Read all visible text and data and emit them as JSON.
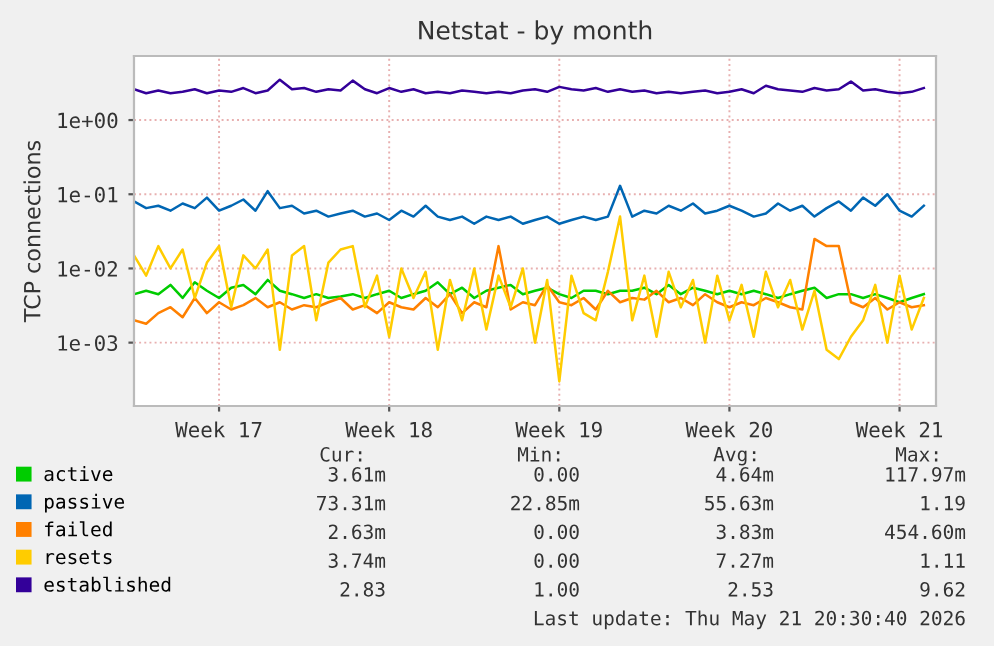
{
  "chart_data": {
    "type": "line",
    "title": "Netstat - by month",
    "ylabel": "TCP connections",
    "categories": [
      null,
      null,
      null,
      null,
      null,
      null,
      null,
      "Week 17",
      null,
      null,
      null,
      null,
      null,
      null,
      null,
      null,
      null,
      null,
      null,
      null,
      null,
      "Week 18",
      null,
      null,
      null,
      null,
      null,
      null,
      null,
      null,
      null,
      null,
      null,
      null,
      null,
      "Week 19",
      null,
      null,
      null,
      null,
      null,
      null,
      null,
      null,
      null,
      null,
      null,
      null,
      null,
      "Week 20",
      null,
      null,
      null,
      null,
      null,
      null,
      null,
      null,
      null,
      null,
      null,
      null,
      null,
      "Week 21",
      null,
      null
    ],
    "series": [
      {
        "name": "active",
        "color": "#00cc00",
        "values": [
          0.0045,
          0.005,
          0.0045,
          0.006,
          0.004,
          0.0065,
          0.005,
          0.004,
          0.0055,
          0.006,
          0.0045,
          0.007,
          0.005,
          0.0045,
          0.004,
          0.0045,
          0.004,
          0.0042,
          0.0045,
          0.004,
          0.0045,
          0.005,
          0.004,
          0.0045,
          0.005,
          0.0065,
          0.0045,
          0.0055,
          0.004,
          0.005,
          0.0055,
          0.006,
          0.0045,
          0.005,
          0.0055,
          0.0045,
          0.004,
          0.005,
          0.005,
          0.0045,
          0.005,
          0.005,
          0.0055,
          0.0045,
          0.006,
          0.0045,
          0.0055,
          0.005,
          0.0045,
          0.005,
          0.0045,
          0.005,
          0.0045,
          0.004,
          0.0045,
          0.005,
          0.0055,
          0.004,
          0.0045,
          0.0045,
          0.004,
          0.0045,
          0.004,
          0.0035,
          0.004,
          0.0045
        ]
      },
      {
        "name": "passive",
        "color": "#0066b3",
        "values": [
          0.08,
          0.065,
          0.07,
          0.06,
          0.075,
          0.065,
          0.09,
          0.06,
          0.07,
          0.085,
          0.06,
          0.11,
          0.065,
          0.07,
          0.055,
          0.06,
          0.05,
          0.055,
          0.06,
          0.05,
          0.055,
          0.045,
          0.06,
          0.05,
          0.07,
          0.05,
          0.045,
          0.05,
          0.04,
          0.05,
          0.045,
          0.05,
          0.04,
          0.045,
          0.05,
          0.04,
          0.045,
          0.05,
          0.045,
          0.05,
          0.13,
          0.05,
          0.06,
          0.055,
          0.07,
          0.06,
          0.075,
          0.055,
          0.06,
          0.07,
          0.06,
          0.05,
          0.055,
          0.075,
          0.06,
          0.07,
          0.05,
          0.065,
          0.08,
          0.06,
          0.09,
          0.07,
          0.1,
          0.06,
          0.05,
          0.07
        ]
      },
      {
        "name": "failed",
        "color": "#ff8000",
        "values": [
          0.002,
          0.0018,
          0.0025,
          0.003,
          0.0022,
          0.004,
          0.0025,
          0.0035,
          0.0028,
          0.0032,
          0.004,
          0.003,
          0.0035,
          0.0028,
          0.0032,
          0.003,
          0.0035,
          0.004,
          0.0028,
          0.0032,
          0.0025,
          0.0035,
          0.003,
          0.0028,
          0.004,
          0.003,
          0.0045,
          0.0025,
          0.0035,
          0.003,
          0.02,
          0.0028,
          0.0035,
          0.0032,
          0.006,
          0.0035,
          0.0032,
          0.004,
          0.0028,
          0.005,
          0.0035,
          0.004,
          0.0038,
          0.005,
          0.0035,
          0.004,
          0.0032,
          0.0045,
          0.0035,
          0.003,
          0.0035,
          0.0032,
          0.004,
          0.0035,
          0.003,
          0.0028,
          0.025,
          0.02,
          0.02,
          0.0035,
          0.003,
          0.004,
          0.0028,
          0.0035,
          0.003,
          0.0032
        ]
      },
      {
        "name": "resets",
        "color": "#ffcc00",
        "values": [
          0.015,
          0.008,
          0.02,
          0.01,
          0.018,
          0.004,
          0.012,
          0.02,
          0.003,
          0.015,
          0.01,
          0.018,
          0.0008,
          0.015,
          0.02,
          0.002,
          0.012,
          0.018,
          0.02,
          0.003,
          0.008,
          0.0012,
          0.01,
          0.004,
          0.009,
          0.0008,
          0.007,
          0.002,
          0.01,
          0.0015,
          0.008,
          0.003,
          0.01,
          0.001,
          0.007,
          0.0003,
          0.008,
          0.0025,
          0.002,
          0.009,
          0.05,
          0.002,
          0.008,
          0.0012,
          0.009,
          0.003,
          0.007,
          0.001,
          0.008,
          0.002,
          0.006,
          0.0012,
          0.009,
          0.003,
          0.007,
          0.0015,
          0.005,
          0.0008,
          0.0006,
          0.0012,
          0.002,
          0.006,
          0.001,
          0.008,
          0.0015,
          0.004
        ]
      },
      {
        "name": "established",
        "color": "#330099",
        "values": [
          2.6,
          2.3,
          2.5,
          2.3,
          2.4,
          2.6,
          2.3,
          2.5,
          2.4,
          2.7,
          2.3,
          2.5,
          3.5,
          2.6,
          2.7,
          2.4,
          2.6,
          2.5,
          3.4,
          2.6,
          2.3,
          2.7,
          2.4,
          2.6,
          2.3,
          2.4,
          2.3,
          2.5,
          2.4,
          2.3,
          2.4,
          2.3,
          2.5,
          2.6,
          2.4,
          2.8,
          2.6,
          2.5,
          2.7,
          2.4,
          2.6,
          2.4,
          2.5,
          2.3,
          2.4,
          2.3,
          2.4,
          2.5,
          2.3,
          2.4,
          2.6,
          2.3,
          2.9,
          2.6,
          2.5,
          2.4,
          2.7,
          2.5,
          2.6,
          3.3,
          2.5,
          2.6,
          2.4,
          2.3,
          2.4,
          2.7
        ]
      }
    ],
    "log": "y",
    "ylim": [
      0.00014,
      7.3
    ],
    "yticks": [
      {
        "value": 0.001,
        "label": "1e-03"
      },
      {
        "value": 0.01,
        "label": "1e-02"
      },
      {
        "value": 0.1,
        "label": "1e-01"
      },
      {
        "value": 1,
        "label": "1e+00"
      }
    ],
    "grid": true,
    "legend": "bottom",
    "line_style": "solid",
    "marker": "none",
    "annotations": [
      "Cur:",
      "Min:",
      "Avg:",
      "Max:",
      "3.61m",
      "0.00",
      "4.64m",
      "117.97m",
      "73.31m",
      "22.85m",
      "55.63m",
      "1.19",
      "2.63m",
      "0.00",
      "3.83m",
      "454.60m",
      "3.74m",
      "0.00",
      "7.27m",
      "1.11",
      "2.83",
      "1.00",
      "2.53",
      "9.62",
      "Last update: Thu May 21 20:30:40 2026"
    ]
  }
}
